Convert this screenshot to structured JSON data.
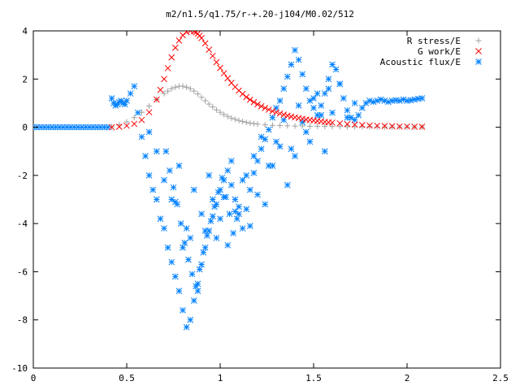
{
  "chart_data": {
    "type": "scatter",
    "title": "m2/n1.5/q1.75/r-+.20-j104/M0.02/512",
    "xlabel": "",
    "ylabel": "",
    "xlim": [
      0,
      2.5
    ],
    "ylim": [
      -10,
      4
    ],
    "x_ticks": [
      0,
      0.5,
      1,
      1.5,
      2,
      2.5
    ],
    "x_tick_labels": [
      "0",
      "0.5",
      "1",
      "1.5",
      "2",
      "2.5"
    ],
    "y_ticks": [
      -10,
      -8,
      -6,
      -4,
      -2,
      0,
      2,
      4
    ],
    "y_tick_labels": [
      "-10",
      "-8",
      "-6",
      "-4",
      "-2",
      "0",
      "2",
      "4"
    ],
    "grid": false,
    "legend_position": "top-right",
    "series": [
      {
        "name": "R stress/E",
        "marker": "+",
        "color": "#a0a0a0",
        "x": [
          0.42,
          0.46,
          0.5,
          0.54,
          0.58,
          0.62,
          0.66,
          0.7,
          0.72,
          0.74,
          0.76,
          0.78,
          0.8,
          0.82,
          0.84,
          0.86,
          0.88,
          0.9,
          0.92,
          0.94,
          0.96,
          0.98,
          1.0,
          1.02,
          1.04,
          1.06,
          1.08,
          1.1,
          1.12,
          1.14,
          1.16,
          1.18,
          1.2,
          1.24,
          1.28,
          1.32,
          1.36,
          1.4,
          1.44,
          1.48,
          1.52,
          1.56,
          1.6,
          1.64,
          1.68,
          1.72,
          1.76,
          1.8,
          1.84,
          1.88,
          1.92,
          1.96,
          2.0,
          2.04,
          2.08
        ],
        "y": [
          0.02,
          0.1,
          0.22,
          0.4,
          0.62,
          0.88,
          1.15,
          1.4,
          1.5,
          1.6,
          1.66,
          1.7,
          1.7,
          1.66,
          1.6,
          1.5,
          1.38,
          1.24,
          1.1,
          0.96,
          0.84,
          0.72,
          0.62,
          0.53,
          0.45,
          0.38,
          0.33,
          0.28,
          0.24,
          0.2,
          0.17,
          0.15,
          0.13,
          0.1,
          0.08,
          0.07,
          0.06,
          0.05,
          0.05,
          0.04,
          0.04,
          0.03,
          0.03,
          0.03,
          0.02,
          0.02,
          0.02,
          0.02,
          0.01,
          0.01,
          0.01,
          0.01,
          0.01,
          0.01,
          0.01
        ]
      },
      {
        "name": "G work/E",
        "marker": "x",
        "color": "#ff0000",
        "x": [
          0.42,
          0.46,
          0.5,
          0.54,
          0.58,
          0.62,
          0.66,
          0.68,
          0.7,
          0.72,
          0.74,
          0.76,
          0.78,
          0.8,
          0.82,
          0.84,
          0.86,
          0.87,
          0.88,
          0.89,
          0.9,
          0.92,
          0.94,
          0.96,
          0.98,
          1.0,
          1.02,
          1.04,
          1.06,
          1.08,
          1.1,
          1.12,
          1.14,
          1.16,
          1.18,
          1.2,
          1.22,
          1.24,
          1.26,
          1.28,
          1.3,
          1.32,
          1.34,
          1.36,
          1.38,
          1.4,
          1.42,
          1.44,
          1.46,
          1.48,
          1.5,
          1.52,
          1.54,
          1.56,
          1.58,
          1.6,
          1.64,
          1.68,
          1.72,
          1.76,
          1.8,
          1.84,
          1.88,
          1.92,
          1.96,
          2.0,
          2.04,
          2.08
        ],
        "y": [
          0.0,
          0.02,
          0.06,
          0.14,
          0.3,
          0.62,
          1.15,
          1.55,
          2.0,
          2.45,
          2.9,
          3.3,
          3.6,
          3.82,
          3.95,
          4.0,
          3.98,
          3.94,
          3.88,
          3.8,
          3.7,
          3.48,
          3.22,
          2.96,
          2.7,
          2.46,
          2.24,
          2.03,
          1.84,
          1.67,
          1.52,
          1.38,
          1.25,
          1.14,
          1.04,
          0.95,
          0.87,
          0.8,
          0.73,
          0.67,
          0.62,
          0.57,
          0.52,
          0.48,
          0.44,
          0.41,
          0.38,
          0.35,
          0.32,
          0.3,
          0.28,
          0.26,
          0.24,
          0.22,
          0.2,
          0.19,
          0.16,
          0.13,
          0.11,
          0.09,
          0.07,
          0.06,
          0.05,
          0.04,
          0.03,
          0.03,
          0.02,
          0.02
        ]
      },
      {
        "name": "Acoustic flux/E",
        "marker": "*",
        "color": "#0080ff",
        "x": [
          0.0,
          0.02,
          0.04,
          0.06,
          0.08,
          0.1,
          0.12,
          0.14,
          0.16,
          0.18,
          0.2,
          0.22,
          0.24,
          0.26,
          0.28,
          0.3,
          0.32,
          0.34,
          0.36,
          0.38,
          0.4,
          0.42,
          0.43,
          0.44,
          0.45,
          0.46,
          0.47,
          0.48,
          0.49,
          0.5,
          0.52,
          0.54,
          0.56,
          0.58,
          0.6,
          0.62,
          0.64,
          0.66,
          0.68,
          0.7,
          0.72,
          0.74,
          0.76,
          0.78,
          0.8,
          0.82,
          0.84,
          0.86,
          0.88,
          0.9,
          0.92,
          0.94,
          0.96,
          0.98,
          1.0,
          1.02,
          1.04,
          1.06,
          1.08,
          1.1,
          1.12,
          1.14,
          1.16,
          1.18,
          1.2,
          1.22,
          1.24,
          1.26,
          1.28,
          1.3,
          1.32,
          1.34,
          1.36,
          1.38,
          1.4,
          1.42,
          1.44,
          1.46,
          1.48,
          1.5,
          1.52,
          1.54,
          1.56,
          1.58,
          1.6,
          1.62,
          1.64,
          1.66,
          1.68,
          1.7,
          1.72,
          1.74,
          1.76,
          1.78,
          1.8,
          1.82,
          1.84,
          1.86,
          1.88,
          1.9,
          1.92,
          1.94,
          1.96,
          1.98,
          2.0,
          2.02,
          2.04,
          2.06,
          2.08,
          0.71,
          0.73,
          0.75,
          0.77,
          0.79,
          0.81,
          0.83,
          0.85,
          0.87,
          0.89,
          0.91,
          0.93,
          0.95,
          0.97,
          0.99,
          1.01,
          1.03,
          1.05,
          1.07,
          1.09,
          0.76,
          0.8,
          0.84,
          0.88,
          0.92,
          0.96,
          1.0,
          1.04,
          1.08,
          1.12,
          1.16,
          1.2,
          1.24,
          1.28,
          1.32,
          1.36,
          1.4,
          1.44,
          1.48,
          1.52,
          1.56,
          1.6,
          1.64,
          1.68,
          1.72,
          0.62,
          0.66,
          0.7,
          0.74,
          0.78,
          0.82,
          0.86,
          0.9,
          0.94,
          0.98,
          1.02,
          1.06,
          1.1,
          1.14,
          1.18,
          1.22,
          1.26,
          1.3,
          1.34,
          1.38,
          1.42,
          1.46,
          1.5,
          1.54,
          1.58
        ],
        "y": [
          0.0,
          0.0,
          0.0,
          0.0,
          0.0,
          0.0,
          0.0,
          0.0,
          0.0,
          0.0,
          0.0,
          0.0,
          0.0,
          0.0,
          0.0,
          0.0,
          0.0,
          0.0,
          0.0,
          0.0,
          0.0,
          1.2,
          1.0,
          0.9,
          0.95,
          1.05,
          1.1,
          1.0,
          0.95,
          1.1,
          1.4,
          1.7,
          0.6,
          -0.4,
          -1.2,
          -2.0,
          -2.6,
          -3.0,
          -3.8,
          -4.2,
          -5.0,
          -5.6,
          -6.2,
          -6.8,
          -7.6,
          -8.3,
          -8.0,
          -7.2,
          -6.5,
          -5.7,
          -5.0,
          -4.3,
          -3.7,
          -3.2,
          -2.6,
          -2.2,
          -1.8,
          -2.4,
          -3.0,
          -3.6,
          -4.2,
          -3.4,
          -2.6,
          -1.9,
          -1.4,
          -0.9,
          -0.5,
          -0.1,
          0.4,
          0.8,
          1.1,
          1.6,
          2.1,
          2.6,
          3.2,
          2.8,
          2.2,
          1.6,
          1.1,
          0.8,
          0.5,
          0.9,
          1.4,
          2.0,
          2.6,
          2.4,
          1.8,
          1.2,
          0.7,
          0.4,
          0.3,
          0.5,
          0.8,
          1.0,
          1.1,
          1.05,
          1.1,
          1.15,
          1.1,
          1.05,
          1.1,
          1.12,
          1.1,
          1.15,
          1.1,
          1.12,
          1.15,
          1.18,
          1.2,
          -1.0,
          -1.8,
          -2.5,
          -3.2,
          -4.0,
          -4.8,
          -5.5,
          -6.1,
          -6.6,
          -5.9,
          -5.2,
          -4.5,
          -3.9,
          -3.3,
          -2.7,
          -2.1,
          -2.9,
          -3.6,
          -4.4,
          -3.8,
          -3.1,
          -5.0,
          -4.6,
          -6.8,
          -4.3,
          -3.0,
          -3.8,
          -4.9,
          -3.5,
          -2.2,
          -4.1,
          -2.8,
          -3.2,
          -1.6,
          -0.8,
          -2.4,
          -1.2,
          0.2,
          -0.6,
          1.4,
          -1.0,
          0.6,
          1.8,
          0.4,
          1.0,
          -0.2,
          -1.0,
          -2.2,
          -3.0,
          -1.6,
          -4.2,
          -2.6,
          -3.6,
          -2.0,
          -4.6,
          -2.9,
          -1.4,
          -3.3,
          -2.0,
          -1.2,
          -0.4,
          -1.6,
          -0.6,
          0.3,
          -0.9,
          0.9,
          -0.2,
          1.2,
          0.5,
          1.6
        ]
      }
    ]
  }
}
